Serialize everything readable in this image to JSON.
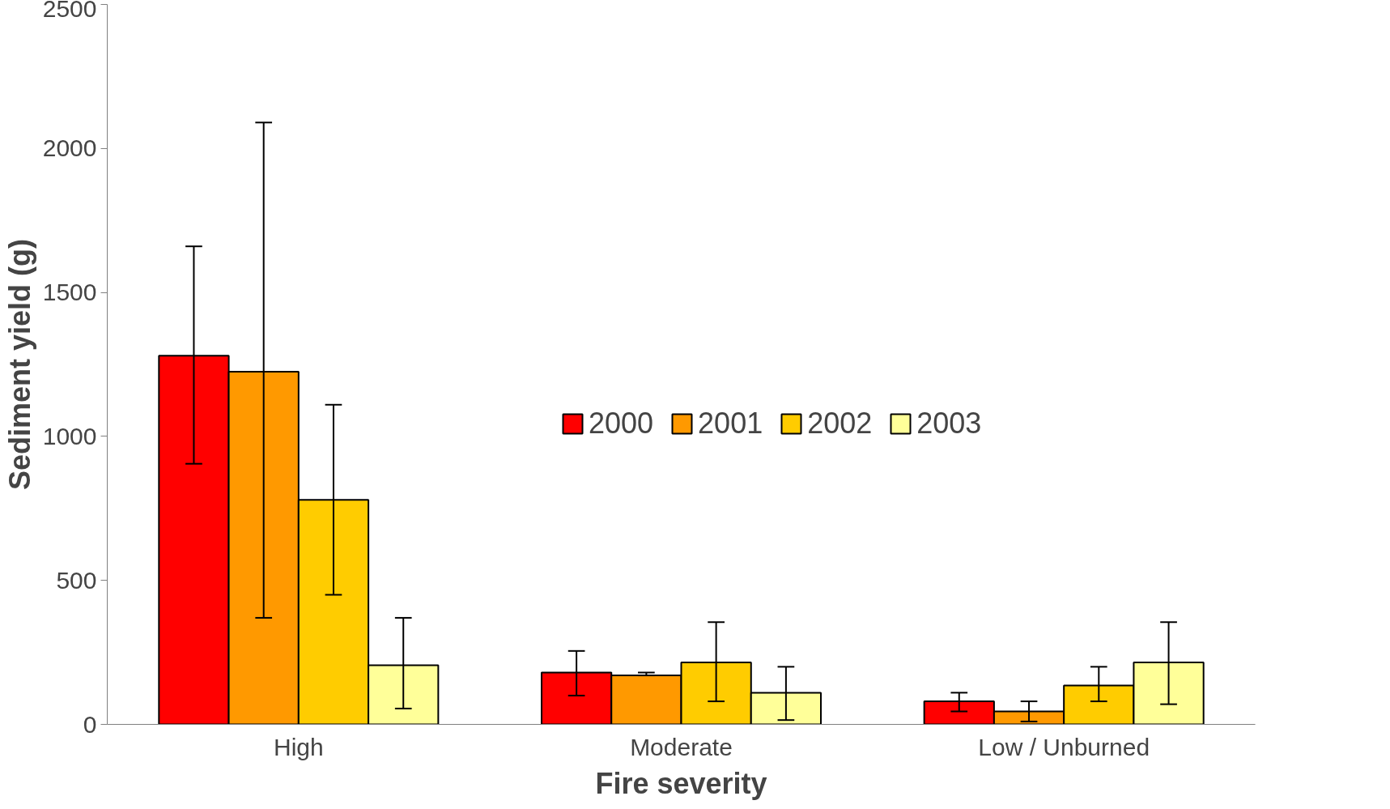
{
  "chart_data": {
    "type": "bar",
    "xlabel": "Fire severity",
    "ylabel": "Sediment yield (g)",
    "categories": [
      "High",
      "Moderate",
      "Low / Unburned"
    ],
    "ylim": [
      0,
      2500
    ],
    "yticks": [
      0,
      500,
      1000,
      1500,
      2000,
      2500
    ],
    "grid": false,
    "legend": "right",
    "series": [
      {
        "name": "2000",
        "color": "#ff0000",
        "values": [
          1280,
          180,
          80
        ],
        "errors": [
          [
            905,
            1660
          ],
          [
            100,
            255
          ],
          [
            45,
            110
          ]
        ]
      },
      {
        "name": "2001",
        "color": "#ff9900",
        "values": [
          1225,
          170,
          45
        ],
        "errors": [
          [
            370,
            2090
          ],
          [
            170,
            180
          ],
          [
            10,
            80
          ]
        ]
      },
      {
        "name": "2002",
        "color": "#ffcc00",
        "values": [
          780,
          215,
          135
        ],
        "errors": [
          [
            450,
            1110
          ],
          [
            80,
            355
          ],
          [
            80,
            200
          ]
        ]
      },
      {
        "name": "2003",
        "color": "#ffff99",
        "values": [
          205,
          110,
          215
        ],
        "errors": [
          [
            55,
            370
          ],
          [
            15,
            200
          ],
          [
            70,
            355
          ]
        ]
      }
    ]
  }
}
